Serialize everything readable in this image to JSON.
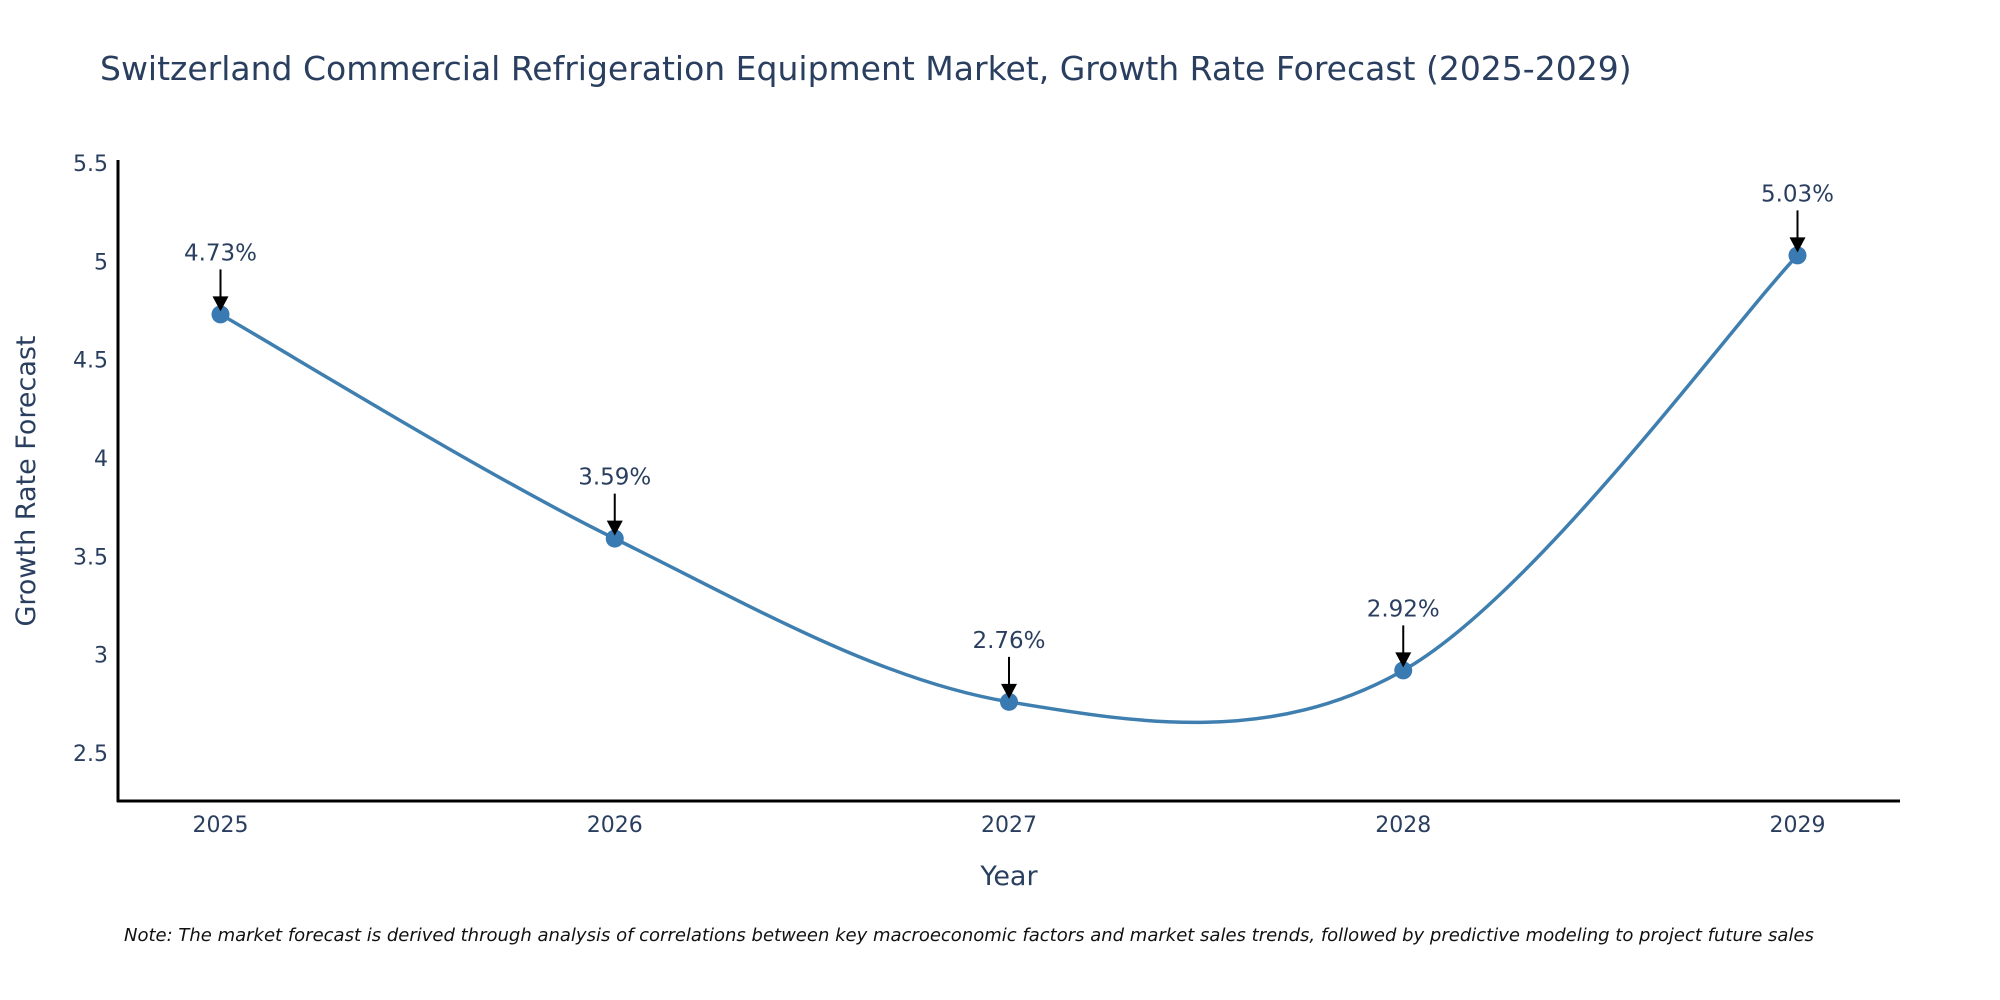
{
  "chart_data": {
    "type": "line",
    "title": "Switzerland Commercial Refrigeration Equipment Market, Growth Rate Forecast (2025-2029)",
    "xlabel": "Year",
    "ylabel": "Growth Rate Forecast",
    "x": [
      2025,
      2026,
      2027,
      2028,
      2029
    ],
    "x_tick_labels": [
      "2025",
      "2026",
      "2027",
      "2028",
      "2029"
    ],
    "series": [
      {
        "name": "Growth Rate Forecast",
        "values": [
          4.73,
          3.59,
          2.76,
          2.92,
          5.03
        ],
        "line_shape": "spline",
        "color": "#3f7fb0",
        "marker_color": "#3a7ab3"
      }
    ],
    "annotations": [
      "4.73%",
      "3.59%",
      "2.76%",
      "2.92%",
      "5.03%"
    ],
    "y_ticks": [
      2.5,
      3,
      3.5,
      4,
      4.5,
      5,
      5.5
    ],
    "y_tick_labels": [
      "2.5",
      "3",
      "3.5",
      "4",
      "4.5",
      "5",
      "5.5"
    ],
    "ylim": [
      2.256,
      5.515
    ],
    "xlim": [
      2024.74,
      2029.26
    ],
    "grid": false,
    "legend": "none",
    "note": "Note: The market forecast is derived through analysis of correlations between key macroeconomic factors and market sales trends, followed by predictive modeling to project future sales"
  }
}
